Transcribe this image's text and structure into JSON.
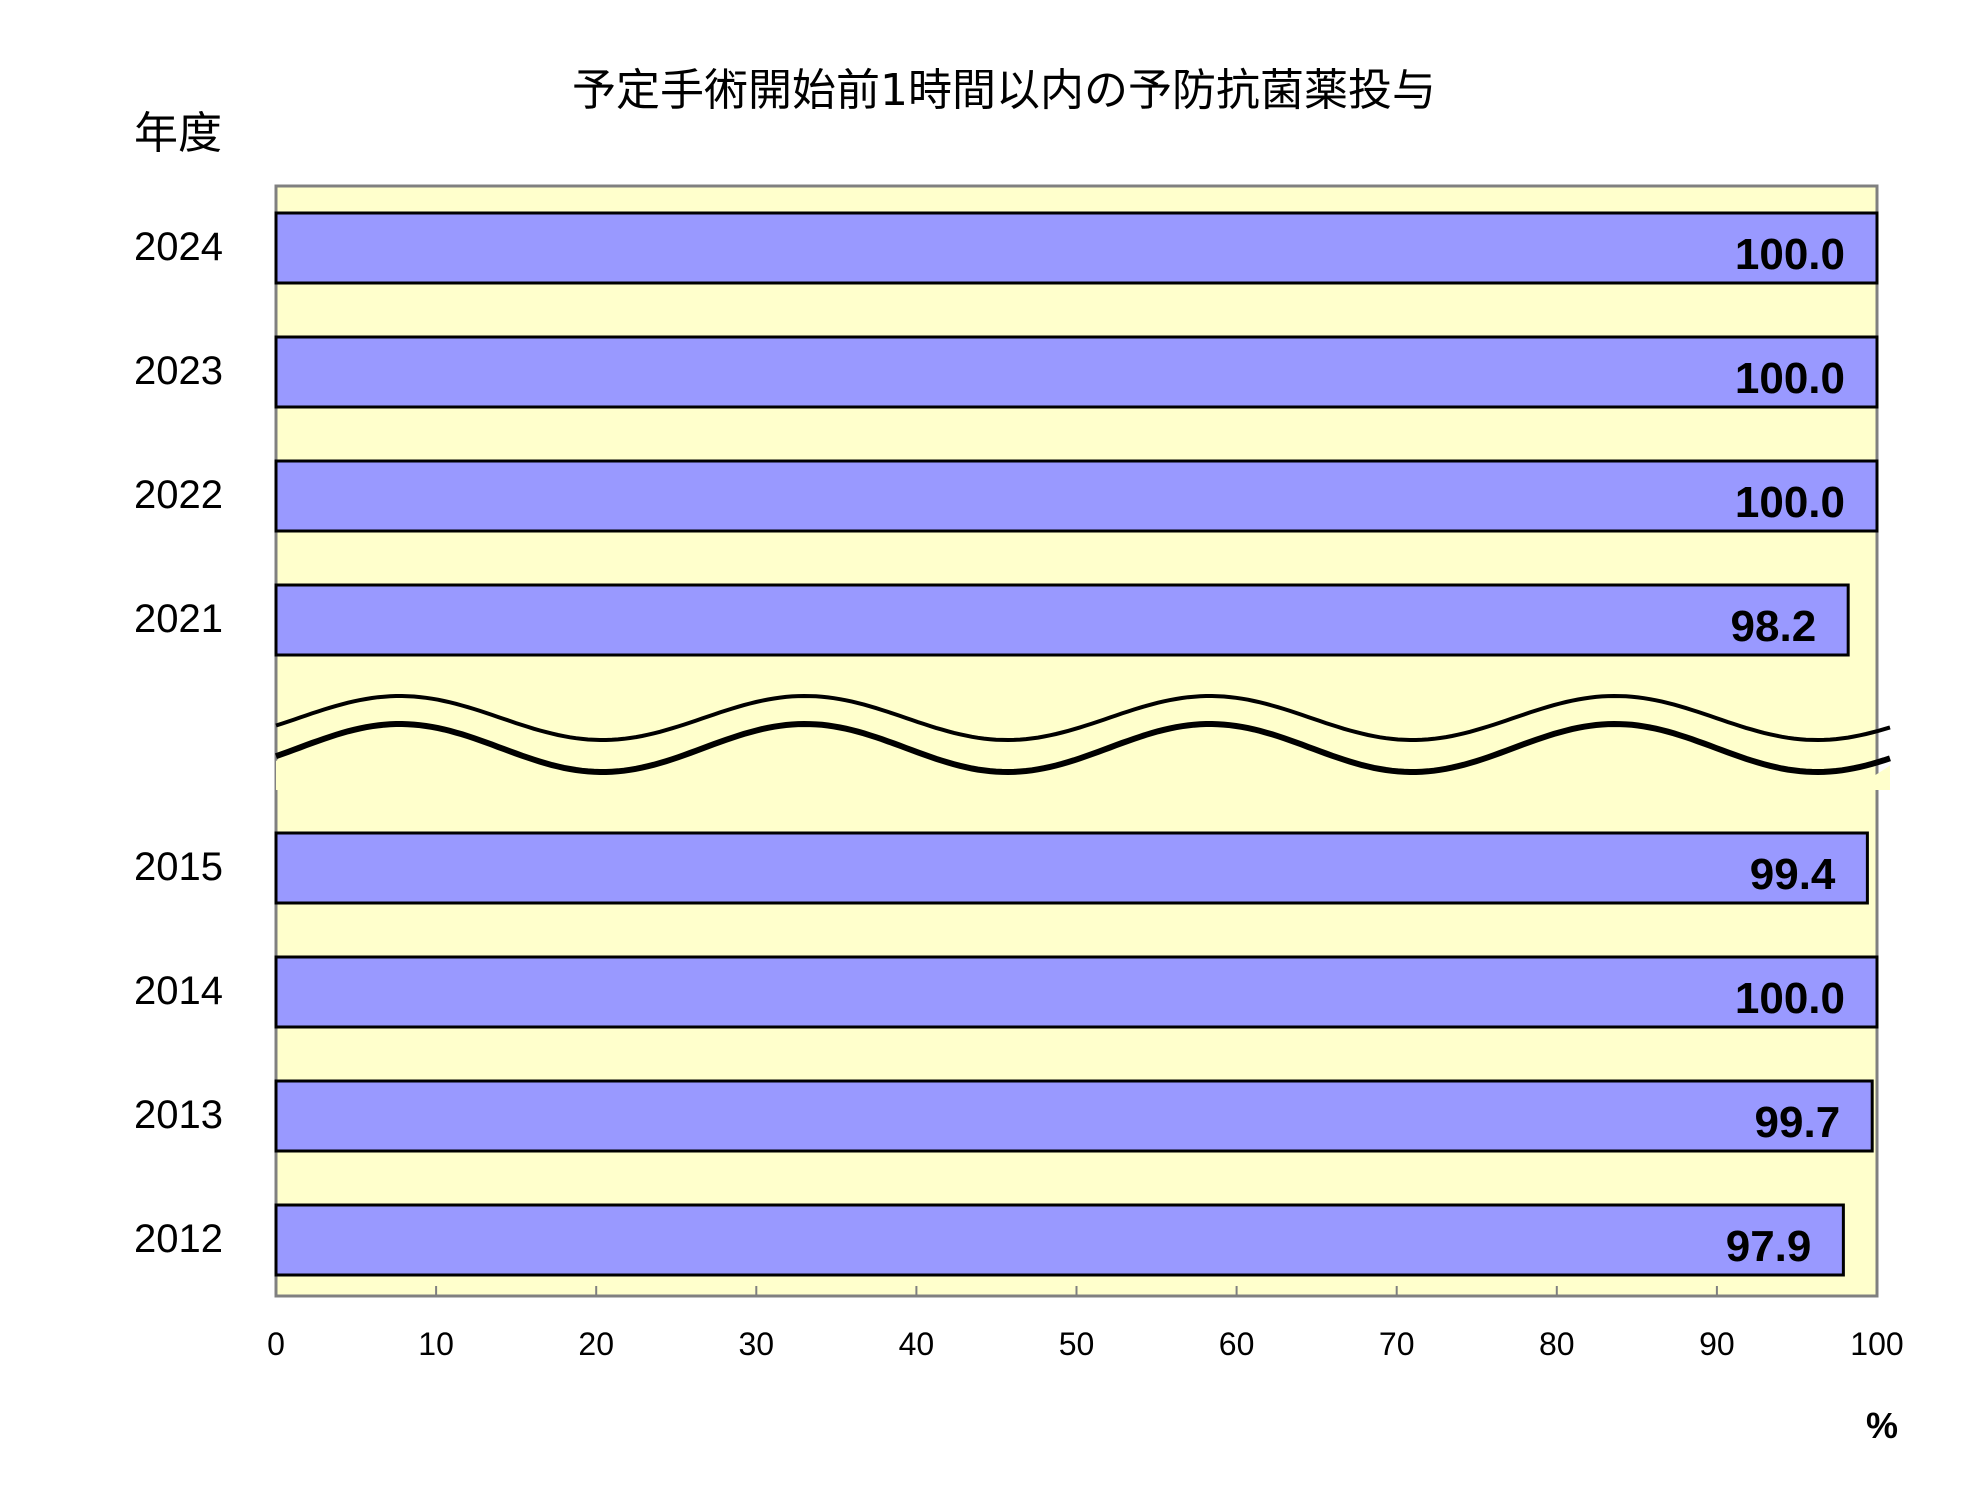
{
  "chart_data": {
    "type": "bar",
    "orientation": "horizontal",
    "title": "予定手術開始前1時間以内の予防抗菌薬投与",
    "ylabel": "年度",
    "xunit": "%",
    "xlim": [
      0,
      100
    ],
    "xticks": [
      0,
      10,
      20,
      30,
      40,
      50,
      60,
      70,
      80,
      90,
      100
    ],
    "axis_break": "between 2021 and 2015",
    "grid": false,
    "legend": "none",
    "categories": [
      "2024",
      "2023",
      "2022",
      "2021",
      "2015",
      "2014",
      "2013",
      "2012"
    ],
    "values": [
      100.0,
      100.0,
      100.0,
      98.2,
      99.4,
      100.0,
      99.7,
      97.9
    ],
    "value_labels": [
      "100.0",
      "100.0",
      "100.0",
      "98.2",
      "99.4",
      "100.0",
      "99.7",
      "97.9"
    ],
    "colors": {
      "bar": "#9999ff",
      "plot_bg": "#ffffcc",
      "frame": "#808080",
      "bar_edge": "#000000"
    }
  }
}
